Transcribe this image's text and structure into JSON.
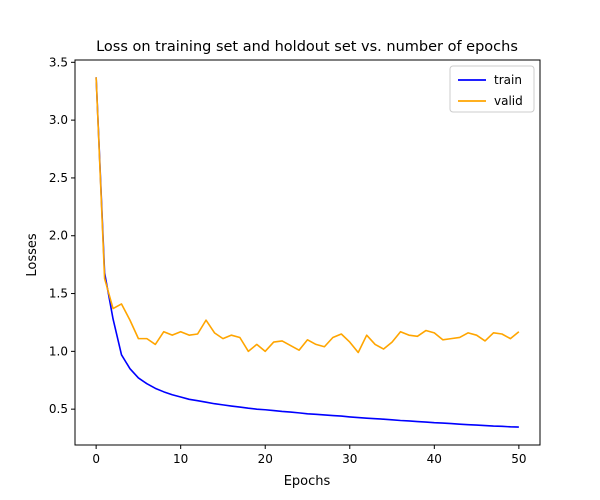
{
  "chart_data": {
    "type": "line",
    "title": "Loss on training set and holdout set vs. number of epochs",
    "xlabel": "Epochs",
    "ylabel": "Losses",
    "xlim": [
      -2.5,
      52.5
    ],
    "ylim": [
      0.19,
      3.52
    ],
    "xticks": [
      0,
      10,
      20,
      30,
      40,
      50
    ],
    "yticks": [
      0.5,
      1.0,
      1.5,
      2.0,
      2.5,
      3.0,
      3.5
    ],
    "xtick_labels": [
      "0",
      "10",
      "20",
      "30",
      "40",
      "50"
    ],
    "ytick_labels": [
      "0.5",
      "1.0",
      "1.5",
      "2.0",
      "2.5",
      "3.0",
      "3.5"
    ],
    "legend_position": "top-right",
    "grid": false,
    "x": [
      0,
      1,
      2,
      3,
      4,
      5,
      6,
      7,
      8,
      9,
      10,
      11,
      12,
      13,
      14,
      15,
      16,
      17,
      18,
      19,
      20,
      21,
      22,
      23,
      24,
      25,
      26,
      27,
      28,
      29,
      30,
      31,
      32,
      33,
      34,
      35,
      36,
      37,
      38,
      39,
      40,
      41,
      42,
      43,
      44,
      45,
      46,
      47,
      48,
      49,
      50
    ],
    "series": [
      {
        "name": "train",
        "color": "#0000ff",
        "values": [
          3.37,
          1.68,
          1.28,
          0.97,
          0.85,
          0.77,
          0.72,
          0.68,
          0.65,
          0.625,
          0.605,
          0.585,
          0.573,
          0.56,
          0.547,
          0.537,
          0.527,
          0.518,
          0.508,
          0.5,
          0.495,
          0.488,
          0.48,
          0.475,
          0.468,
          0.46,
          0.455,
          0.45,
          0.445,
          0.44,
          0.433,
          0.427,
          0.422,
          0.418,
          0.413,
          0.408,
          0.402,
          0.398,
          0.393,
          0.388,
          0.383,
          0.38,
          0.375,
          0.37,
          0.366,
          0.362,
          0.358,
          0.354,
          0.352,
          0.347,
          0.345
        ]
      },
      {
        "name": "valid",
        "color": "#ffa500",
        "values": [
          3.37,
          1.63,
          1.37,
          1.41,
          1.27,
          1.11,
          1.11,
          1.06,
          1.17,
          1.14,
          1.17,
          1.14,
          1.15,
          1.27,
          1.16,
          1.11,
          1.14,
          1.12,
          1.0,
          1.06,
          1.0,
          1.08,
          1.09,
          1.05,
          1.01,
          1.1,
          1.06,
          1.04,
          1.12,
          1.15,
          1.08,
          0.99,
          1.14,
          1.06,
          1.02,
          1.08,
          1.17,
          1.14,
          1.13,
          1.18,
          1.16,
          1.1,
          1.11,
          1.12,
          1.16,
          1.14,
          1.09,
          1.16,
          1.15,
          1.11,
          1.17
        ]
      }
    ]
  }
}
